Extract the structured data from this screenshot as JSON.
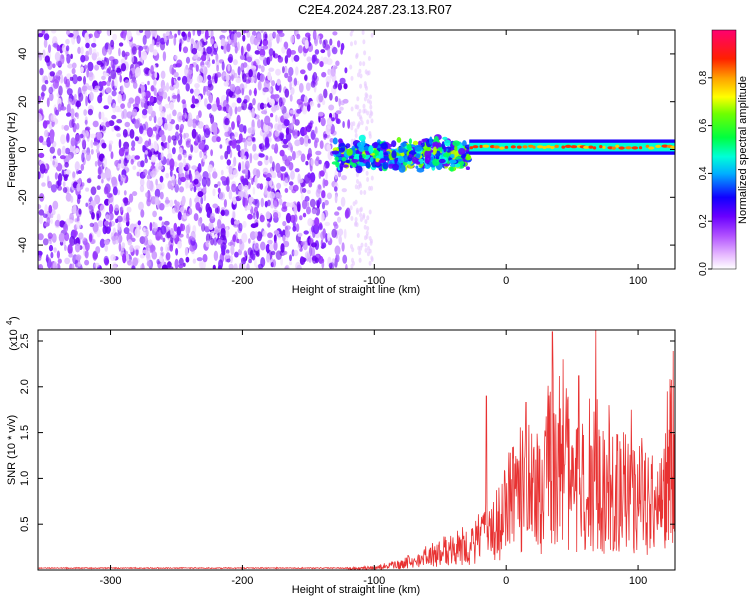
{
  "title": "C2E4.2024.287.23.13.R07",
  "chart_data": [
    {
      "type": "heatmap",
      "xlabel": "Height of straight line (km)",
      "ylabel": "Frequency (Hz)",
      "xlim": [
        -355,
        128
      ],
      "ylim": [
        -50,
        50
      ],
      "xticks": [
        -300,
        -200,
        -100,
        0,
        100
      ],
      "yticks": [
        -40,
        -20,
        0,
        20,
        40
      ],
      "noise_region_km": [
        -355,
        -118
      ],
      "signal_band": [
        {
          "x_range": [
            -130,
            -28
          ],
          "freq_center_hz": -2,
          "freq_halfwidth_hz": 6,
          "note": "broadened turbulent return"
        },
        {
          "x_range": [
            -28,
            128
          ],
          "freq_center_hz": 1,
          "freq_halfwidth_hz": 2,
          "note": "narrow coherent return"
        }
      ],
      "colorbar": {
        "label": "Normalized spectral amplitude",
        "range": [
          0.0,
          1.0
        ],
        "ticks": [
          "0.0",
          "0.2",
          "0.4",
          "0.6",
          "0.8"
        ]
      }
    },
    {
      "type": "line",
      "xlabel": "Height of straight line (km)",
      "ylabel": "SNR (10 * v/v)",
      "scale_label": "(x10",
      "scale_exp": "4",
      "xlim": [
        -355,
        128
      ],
      "ylim": [
        0,
        2.62
      ],
      "xticks": [
        -300,
        -200,
        -100,
        0,
        100
      ],
      "yticks": [
        "0.5",
        "1.0",
        "1.5",
        "2.0",
        "2.5"
      ],
      "series_color": "#e83232",
      "envelope": {
        "x": [
          -355,
          -120,
          -100,
          -80,
          -60,
          -40,
          -25,
          -15,
          -5,
          0,
          10,
          20,
          30,
          40,
          50,
          60,
          70,
          80,
          90,
          100,
          110,
          115,
          120,
          125,
          128
        ],
        "y": [
          0.02,
          0.02,
          0.03,
          0.08,
          0.18,
          0.28,
          0.35,
          0.5,
          0.62,
          0.8,
          1.0,
          1.08,
          1.15,
          1.22,
          1.25,
          1.22,
          1.12,
          1.05,
          1.0,
          0.95,
          0.88,
          0.75,
          0.95,
          1.6,
          1.8
        ]
      },
      "spikes": [
        {
          "x": -15,
          "y": 1.9
        },
        {
          "x": 15,
          "y": 1.83
        },
        {
          "x": 35,
          "y": 2.6
        },
        {
          "x": 43,
          "y": 2.3
        },
        {
          "x": 55,
          "y": 2.12
        },
        {
          "x": 68,
          "y": 2.62
        },
        {
          "x": 78,
          "y": 1.8
        },
        {
          "x": 95,
          "y": 1.75
        },
        {
          "x": 122,
          "y": 1.95
        }
      ]
    }
  ]
}
